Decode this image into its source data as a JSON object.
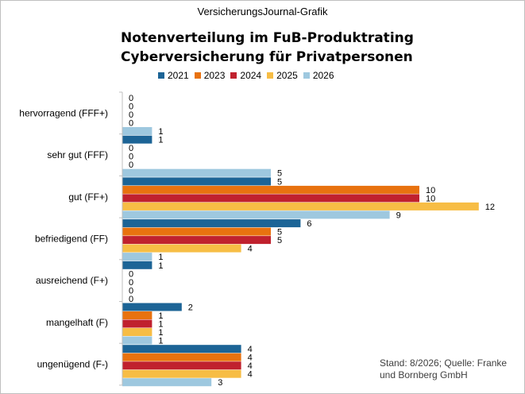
{
  "header": {
    "source_label": "VersicherungsJournal-Grafik"
  },
  "footer": {
    "note": "Stand: 8/2026; Quelle: Franke und Bornberg GmbH"
  },
  "colors": {
    "2021": "#1c6496",
    "2023": "#e8720f",
    "2024": "#c0212e",
    "2025": "#f7bd45",
    "2026": "#9ec8df"
  },
  "chart_data": {
    "type": "bar",
    "orientation": "horizontal",
    "title_lines": [
      "Notenverteilung im FuB-Produktrating",
      "Cyberversicherung  für Privatpersonen"
    ],
    "categories": [
      "hervorragend (FFF+)",
      "sehr gut (FFF)",
      "gut (FF+)",
      "befriedigend (FF)",
      "ausreichend (F+)",
      "mangelhaft (F)",
      "ungenügend (F-)"
    ],
    "series": [
      {
        "name": "2021",
        "values": [
          0,
          1,
          5,
          6,
          1,
          2,
          4
        ]
      },
      {
        "name": "2023",
        "values": [
          0,
          0,
          10,
          5,
          0,
          1,
          4
        ]
      },
      {
        "name": "2024",
        "values": [
          0,
          0,
          10,
          5,
          0,
          1,
          4
        ]
      },
      {
        "name": "2025",
        "values": [
          0,
          0,
          12,
          4,
          0,
          1,
          4
        ]
      },
      {
        "name": "2026",
        "values": [
          1,
          5,
          9,
          1,
          0,
          1,
          3
        ]
      }
    ],
    "data_labels": true,
    "grid": false,
    "legend_position": "top"
  }
}
